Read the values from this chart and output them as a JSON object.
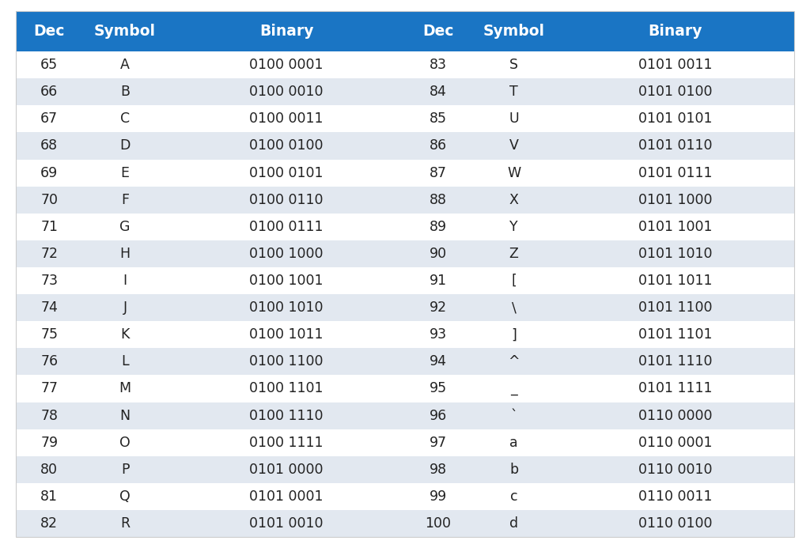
{
  "headers": [
    "Dec",
    "Symbol",
    "Binary",
    "Dec",
    "Symbol",
    "Binary"
  ],
  "rows": [
    [
      "65",
      "A",
      "0100 0001",
      "83",
      "S",
      "0101 0011"
    ],
    [
      "66",
      "B",
      "0100 0010",
      "84",
      "T",
      "0101 0100"
    ],
    [
      "67",
      "C",
      "0100 0011",
      "85",
      "U",
      "0101 0101"
    ],
    [
      "68",
      "D",
      "0100 0100",
      "86",
      "V",
      "0101 0110"
    ],
    [
      "69",
      "E",
      "0100 0101",
      "87",
      "W",
      "0101 0111"
    ],
    [
      "70",
      "F",
      "0100 0110",
      "88",
      "X",
      "0101 1000"
    ],
    [
      "71",
      "G",
      "0100 0111",
      "89",
      "Y",
      "0101 1001"
    ],
    [
      "72",
      "H",
      "0100 1000",
      "90",
      "Z",
      "0101 1010"
    ],
    [
      "73",
      "I",
      "0100 1001",
      "91",
      "[",
      "0101 1011"
    ],
    [
      "74",
      "J",
      "0100 1010",
      "92",
      "\\",
      "0101 1100"
    ],
    [
      "75",
      "K",
      "0100 1011",
      "93",
      "]",
      "0101 1101"
    ],
    [
      "76",
      "L",
      "0100 1100",
      "94",
      "^",
      "0101 1110"
    ],
    [
      "77",
      "M",
      "0100 1101",
      "95",
      "_",
      "0101 1111"
    ],
    [
      "78",
      "N",
      "0100 1110",
      "96",
      "`",
      "0110 0000"
    ],
    [
      "79",
      "O",
      "0100 1111",
      "97",
      "a",
      "0110 0001"
    ],
    [
      "80",
      "P",
      "0101 0000",
      "98",
      "b",
      "0110 0010"
    ],
    [
      "81",
      "Q",
      "0101 0001",
      "99",
      "c",
      "0110 0011"
    ],
    [
      "82",
      "R",
      "0101 0010",
      "100",
      "d",
      "0110 0100"
    ]
  ],
  "header_bg": "#1a75c4",
  "header_text_color": "#ffffff",
  "row_bg_even": "#ffffff",
  "row_bg_odd": "#e2e8f0",
  "row_text_color": "#222222",
  "header_fontsize": 13.5,
  "row_fontsize": 12.5,
  "fig_width": 10.24,
  "fig_height": 6.93,
  "dpi": 100
}
